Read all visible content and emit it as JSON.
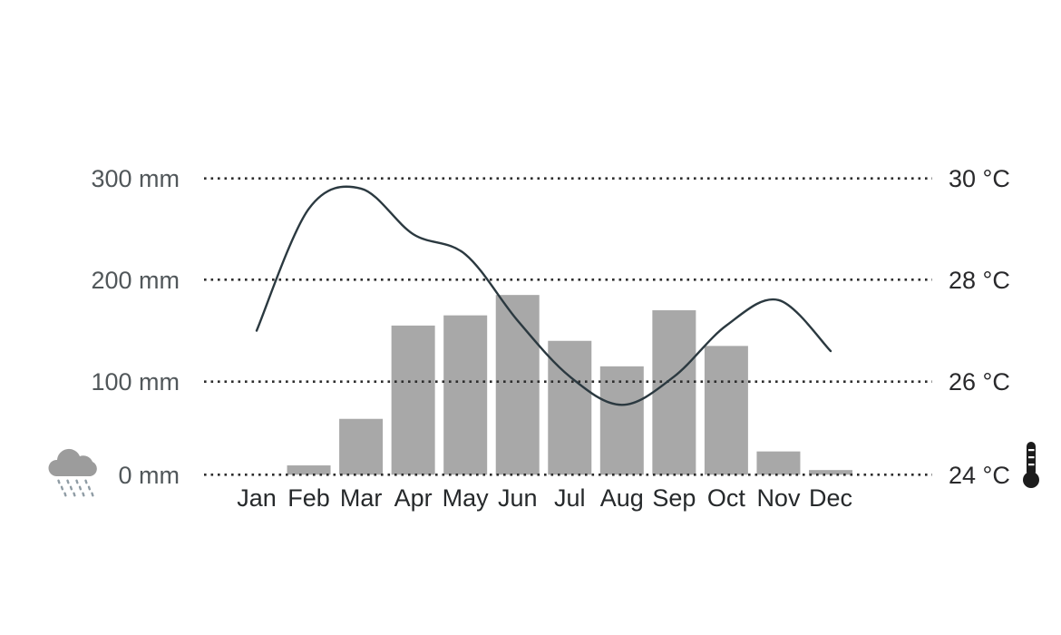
{
  "chart_data": {
    "type": "bar",
    "subtype": "climate-diagram-combo-bar-line",
    "title": "",
    "categories": [
      "Jan",
      "Feb",
      "Mar",
      "Apr",
      "May",
      "Jun",
      "Jul",
      "Aug",
      "Sep",
      "Oct",
      "Nov",
      "Dec"
    ],
    "series": [
      {
        "name": "Precipitation",
        "render": "bar",
        "unit": "mm",
        "values": [
          0,
          10,
          60,
          155,
          165,
          185,
          140,
          115,
          170,
          135,
          25,
          5
        ]
      },
      {
        "name": "Temperature",
        "render": "line",
        "unit": "°C",
        "values": [
          27.0,
          29.4,
          29.8,
          28.9,
          28.5,
          27.2,
          26.1,
          25.5,
          26.1,
          27.1,
          27.6,
          26.6
        ]
      }
    ],
    "left_axis": {
      "unit": "mm",
      "ticks": [
        300,
        200,
        100,
        0
      ],
      "tick_labels": [
        "300 mm",
        "200 mm",
        "100 mm",
        "0 mm"
      ],
      "range": [
        0,
        300
      ]
    },
    "right_axis": {
      "unit": "°C",
      "ticks": [
        30,
        28,
        26,
        24
      ],
      "tick_labels": [
        "30 °C",
        "28 °C",
        "26 °C",
        "24 °C"
      ],
      "range": [
        24,
        30
      ]
    },
    "grid": "horizontal-dotted",
    "legend": "none",
    "icons": {
      "precipitation_axis_icon": "rain-cloud-icon",
      "temperature_axis_icon": "thermometer-icon"
    },
    "colors": {
      "background": "#ffffff",
      "bar": "#a8a8a8",
      "line": "#2b3940",
      "grid": "#2d2d2d",
      "left_axis_text": "#51575a",
      "right_axis_text": "#29292b",
      "month_text": "#26292b",
      "cloud": "#9c9c9c",
      "raindrop": "#8f9ca4",
      "thermometer": "#1c1c1c"
    }
  }
}
